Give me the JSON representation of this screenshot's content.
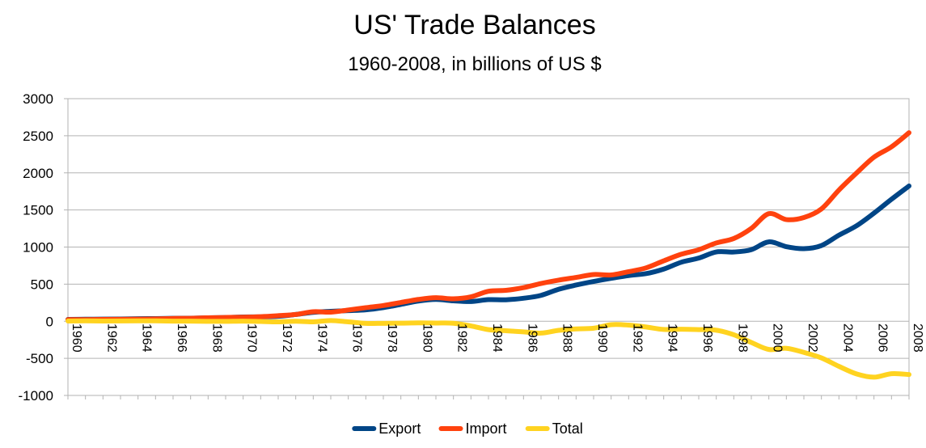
{
  "chart_data": {
    "type": "line",
    "title": "US' Trade Balances",
    "subtitle": "1960-2008, in billions of US $",
    "xlabel": "",
    "ylabel": "",
    "ylim": [
      -1000,
      3000
    ],
    "yticks": [
      3000,
      2500,
      2000,
      1500,
      1000,
      500,
      0,
      -500,
      -1000
    ],
    "x": [
      1960,
      1961,
      1962,
      1963,
      1964,
      1965,
      1966,
      1967,
      1968,
      1969,
      1970,
      1971,
      1972,
      1973,
      1974,
      1975,
      1976,
      1977,
      1978,
      1979,
      1980,
      1981,
      1982,
      1983,
      1984,
      1985,
      1986,
      1987,
      1988,
      1989,
      1990,
      1991,
      1992,
      1993,
      1994,
      1995,
      1996,
      1997,
      1998,
      1999,
      2000,
      2001,
      2002,
      2003,
      2004,
      2005,
      2006,
      2007,
      2008
    ],
    "xtick_labels": [
      "1960",
      "1962",
      "1964",
      "1966",
      "1968",
      "1970",
      "1972",
      "1974",
      "1976",
      "1978",
      "1980",
      "1982",
      "1984",
      "1986",
      "1988",
      "1990",
      "1992",
      "1994",
      "1996",
      "1998",
      "2000",
      "2002",
      "2004",
      "2006",
      "2008"
    ],
    "series": [
      {
        "name": "Export",
        "color": "#004586",
        "values": [
          25,
          27,
          28,
          30,
          34,
          36,
          39,
          41,
          46,
          50,
          57,
          59,
          67,
          91,
          120,
          133,
          143,
          154,
          184,
          227,
          272,
          294,
          275,
          266,
          291,
          289,
          310,
          349,
          431,
          488,
          536,
          578,
          616,
          642,
          703,
          795,
          851,
          934,
          933,
          965,
          1070,
          1005,
          978,
          1020,
          1160,
          1286,
          1457,
          1644,
          1823
        ]
      },
      {
        "name": "Import",
        "color": "#ff420e",
        "values": [
          22,
          22,
          25,
          26,
          28,
          31,
          37,
          40,
          47,
          51,
          55,
          62,
          75,
          91,
          128,
          123,
          151,
          183,
          212,
          253,
          294,
          318,
          302,
          329,
          404,
          417,
          453,
          509,
          554,
          591,
          630,
          624,
          668,
          720,
          814,
          903,
          964,
          1055,
          1115,
          1251,
          1450,
          1370,
          1398,
          1514,
          1768,
          1996,
          2211,
          2351,
          2541
        ]
      },
      {
        "name": "Total",
        "color": "#ffd320",
        "values": [
          3,
          5,
          3,
          4,
          6,
          5,
          2,
          1,
          -1,
          -1,
          2,
          -3,
          -8,
          0,
          -8,
          10,
          -8,
          -29,
          -28,
          -26,
          -22,
          -24,
          -27,
          -63,
          -113,
          -128,
          -143,
          -160,
          -123,
          -103,
          -94,
          -46,
          -52,
          -78,
          -111,
          -108,
          -113,
          -121,
          -182,
          -286,
          -380,
          -365,
          -420,
          -494,
          -608,
          -710,
          -754,
          -707,
          -718
        ]
      }
    ],
    "legend": [
      "Export",
      "Import",
      "Total"
    ],
    "legend_position": "bottom-center",
    "grid": true
  }
}
